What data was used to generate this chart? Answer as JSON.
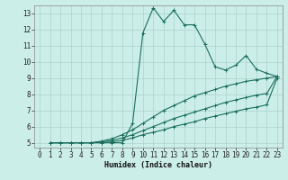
{
  "xlabel": "Humidex (Indice chaleur)",
  "bg_color": "#cceee8",
  "grid_color": "#aad4cc",
  "line_color": "#1a6e5e",
  "xlim": [
    -0.5,
    23.5
  ],
  "ylim": [
    4.7,
    13.5
  ],
  "xticks": [
    0,
    1,
    2,
    3,
    4,
    5,
    6,
    7,
    8,
    9,
    10,
    11,
    12,
    13,
    14,
    15,
    16,
    17,
    18,
    19,
    20,
    21,
    22,
    23
  ],
  "yticks": [
    5,
    6,
    7,
    8,
    9,
    10,
    11,
    12,
    13
  ],
  "line1_x": [
    1,
    2,
    3,
    4,
    5,
    6,
    7,
    8,
    9,
    10,
    11,
    12,
    13,
    14,
    15,
    16,
    17,
    18,
    19,
    20,
    21,
    22,
    23
  ],
  "line1_y": [
    5,
    5,
    5,
    5,
    5,
    5,
    5,
    5,
    6.2,
    11.8,
    13.35,
    12.5,
    13.2,
    12.3,
    12.3,
    11.1,
    9.7,
    9.5,
    9.8,
    10.4,
    9.55,
    9.3,
    9.1
  ],
  "line2_x": [
    1,
    2,
    3,
    4,
    5,
    6,
    7,
    8,
    9,
    10,
    11,
    12,
    13,
    14,
    15,
    16,
    17,
    18,
    19,
    20,
    21,
    22,
    23
  ],
  "line2_y": [
    5,
    5,
    5,
    5,
    5,
    5.1,
    5.25,
    5.5,
    5.8,
    6.2,
    6.6,
    7.0,
    7.3,
    7.6,
    7.9,
    8.1,
    8.3,
    8.5,
    8.65,
    8.8,
    8.9,
    9.0,
    9.1
  ],
  "line3_x": [
    1,
    2,
    3,
    4,
    5,
    6,
    7,
    8,
    9,
    10,
    11,
    12,
    13,
    14,
    15,
    16,
    17,
    18,
    19,
    20,
    21,
    22,
    23
  ],
  "line3_y": [
    5,
    5,
    5,
    5,
    5,
    5.05,
    5.15,
    5.3,
    5.5,
    5.75,
    6.0,
    6.25,
    6.5,
    6.7,
    6.9,
    7.1,
    7.3,
    7.5,
    7.65,
    7.8,
    7.95,
    8.05,
    9.1
  ],
  "line4_x": [
    1,
    2,
    3,
    4,
    5,
    6,
    7,
    8,
    9,
    10,
    11,
    12,
    13,
    14,
    15,
    16,
    17,
    18,
    19,
    20,
    21,
    22,
    23
  ],
  "line4_y": [
    5,
    5,
    5,
    5,
    5,
    5.0,
    5.05,
    5.15,
    5.3,
    5.5,
    5.65,
    5.8,
    6.0,
    6.15,
    6.3,
    6.5,
    6.65,
    6.8,
    6.95,
    7.1,
    7.2,
    7.35,
    9.0
  ]
}
